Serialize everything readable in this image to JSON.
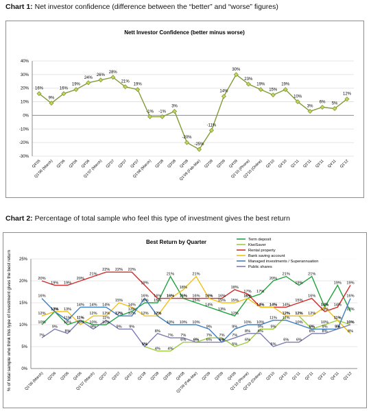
{
  "captions": [
    {
      "label": "Chart 1:",
      "text": "Net investor confidence (difference between the “better” and “worse” figures)"
    },
    {
      "label": "Chart 2:",
      "text": "Percentage of total sample who feel this type of investment gives the best return"
    }
  ],
  "chart_data": [
    {
      "type": "line",
      "title": "Nett Investor Confidence (better minus worse)",
      "xlabel": "",
      "ylabel": "",
      "ylim": [
        -30,
        40
      ],
      "yticks": [
        "-30%",
        "-20%",
        "-10%",
        "0%",
        "10%",
        "20%",
        "30%",
        "40%"
      ],
      "grid": true,
      "categories": [
        "Q4'05",
        "Q1'06 (March)",
        "Q2'06",
        "Q3'06",
        "Q4'06",
        "Q1'07 (March)",
        "Q2'07",
        "Q3'07",
        "Q4'07",
        "Q1'08 (March)",
        "Q2'08",
        "Q3'08",
        "Q4'08",
        "Q1'09 (Feb-Mar)",
        "Q2'09",
        "Q3'09",
        "Q4'09",
        "Q1'10 (Phone)",
        "Q2'10 (Online)",
        "Q3'10",
        "Q4'10",
        "Q1'11",
        "Q2'11",
        "Q3'11",
        "Q4'11",
        "Q1'12"
      ],
      "values": [
        16,
        9,
        16,
        19,
        24,
        26,
        28,
        21,
        19,
        -1,
        -1,
        3,
        -20,
        -25,
        -11,
        14,
        30,
        23,
        19,
        15,
        19,
        10,
        3,
        6,
        5,
        12
      ],
      "point_labels": [
        "16%",
        "9%",
        "16%",
        "19%",
        "24%",
        "26%",
        "28%",
        "21%",
        "19%",
        "-1%",
        "-1%",
        "3%",
        "-20%",
        "-25%",
        "-11%",
        "14%",
        "30%",
        "23%",
        "19%",
        "15%",
        "19%",
        "10%",
        "3%",
        "6%",
        "5%",
        "12%"
      ],
      "line_color": "#7f9c36",
      "marker_color": "#c6d45a"
    },
    {
      "type": "line",
      "title": "Best Return by Quarter",
      "xlabel": "",
      "ylabel": "% of total sample who think this type of investment gives the best return",
      "ylim": [
        0,
        25
      ],
      "yticks": [
        "0%",
        "5%",
        "10%",
        "15%",
        "20%",
        "25%"
      ],
      "grid": true,
      "legend_position": "top-right",
      "categories": [
        "Q1'06 (March)",
        "Q2'06",
        "Q3'06",
        "Q4'06",
        "Q1'07 (March)",
        "Q2'07",
        "Q3'07",
        "Q4'07",
        "Q1'08",
        "Q2'08",
        "Q3'08",
        "Q4'08",
        "Q1'09 (Feb-Mar)",
        "Q2'09",
        "Q3'09",
        "Q4'09",
        "Q1'10 (Phone)",
        "Q2'10 (Online)",
        "Q3'10",
        "Q4'10",
        "Q1'11",
        "Q2'11",
        "Q3'11",
        "Q4'11",
        "Q1'12"
      ],
      "series": [
        {
          "name": "Term deposit",
          "color": "#1fa33a",
          "values": [
            10,
            13,
            10,
            11,
            10,
            10,
            12,
            13,
            15,
            15,
            21,
            16,
            15,
            14,
            13,
            12,
            16,
            17,
            20,
            21,
            19,
            21,
            14,
            19,
            13
          ]
        },
        {
          "name": "KiwiSaver",
          "color": "#9ccc3c",
          "values": [
            null,
            null,
            null,
            null,
            null,
            null,
            null,
            null,
            5,
            4,
            4,
            6,
            6,
            7,
            7,
            5,
            6,
            9,
            9,
            12,
            12,
            9,
            10,
            11,
            10
          ]
        },
        {
          "name": "Rental property",
          "color": "#d42a2a",
          "values": [
            20,
            19,
            19,
            20,
            21,
            22,
            22,
            22,
            19,
            16,
            16,
            16,
            16,
            16,
            16,
            18,
            17,
            14,
            14,
            14,
            15,
            16,
            13,
            14,
            19
          ]
        },
        {
          "name": "Bank saving account",
          "color": "#f2c014",
          "values": [
            12,
            13,
            13,
            10,
            12,
            12,
            15,
            14,
            12,
            12,
            16,
            18,
            21,
            16,
            15,
            15,
            16,
            14,
            14,
            12,
            12,
            12,
            14,
            11,
            8
          ]
        },
        {
          "name": "Managed investments / Superannuation",
          "color": "#3d7ec0",
          "values": [
            16,
            13,
            11,
            14,
            14,
            14,
            12,
            12,
            16,
            12,
            10,
            10,
            10,
            9,
            6,
            9,
            10,
            10,
            11,
            11,
            10,
            9,
            9,
            9,
            16
          ]
        },
        {
          "name": "Public shares",
          "color": "#7b7bb0",
          "values": [
            7,
            9,
            8,
            11,
            9,
            11,
            9,
            9,
            5,
            8,
            7,
            7,
            6,
            6,
            6,
            7,
            8,
            8,
            5,
            6,
            6,
            8,
            8,
            9,
            10
          ]
        }
      ],
      "point_labels": {
        "Term deposit": [
          "10%",
          "13%",
          "10%",
          "11%",
          "10%",
          "10%",
          "12%",
          "13%",
          "15%",
          "15%",
          "21%",
          "16%",
          "15%",
          "14%",
          "13%",
          "12%",
          "16%",
          "17%",
          "20%",
          "21%",
          "19%",
          "21%",
          "14%",
          "19%",
          "13%"
        ],
        "KiwiSaver": [
          null,
          null,
          null,
          null,
          null,
          null,
          null,
          null,
          "5%",
          "4%",
          "4%",
          "6%",
          "6%",
          "7%",
          "7%",
          "5%",
          "6%",
          "9%",
          "9%",
          "12%",
          "12%",
          "9%",
          "10%",
          "11%",
          "10%"
        ],
        "Rental property": [
          "20%",
          "19%",
          "19%",
          "20%",
          "21%",
          "22%",
          "22%",
          "22%",
          "19%",
          "16%",
          "16%",
          "16%",
          "16%",
          "16%",
          "16%",
          "18%",
          "17%",
          "14%",
          "14%",
          "14%",
          "15%",
          "16%",
          "13%",
          "14%",
          "19%"
        ],
        "Bank saving account": [
          "12%",
          "13%",
          "13%",
          "10%",
          "12%",
          "12%",
          "15%",
          "14%",
          "12%",
          "12%",
          "16%",
          "18%",
          "21%",
          "16%",
          "15%",
          "15%",
          "16%",
          "14%",
          "14%",
          "12%",
          "12%",
          "12%",
          "14%",
          "11%",
          "8%"
        ],
        "Managed investments / Superannuation": [
          "16%",
          "13%",
          "11%",
          "14%",
          "14%",
          "14%",
          "12%",
          "12%",
          "16%",
          "12%",
          "10%",
          "10%",
          "10%",
          "9%",
          "6%",
          "9%",
          "10%",
          "10%",
          "11%",
          "11%",
          "10%",
          "9%",
          "9%",
          "9%",
          "16%"
        ],
        "Public shares": [
          "7%",
          "9%",
          "8%",
          "11%",
          "9%",
          "11%",
          "9%",
          "9%",
          "5%",
          "8%",
          "7%",
          "7%",
          "6%",
          "6%",
          "6%",
          "7%",
          "8%",
          "8%",
          "5%",
          "6%",
          "6%",
          "8%",
          "8%",
          "9%",
          "10%"
        ]
      }
    }
  ]
}
